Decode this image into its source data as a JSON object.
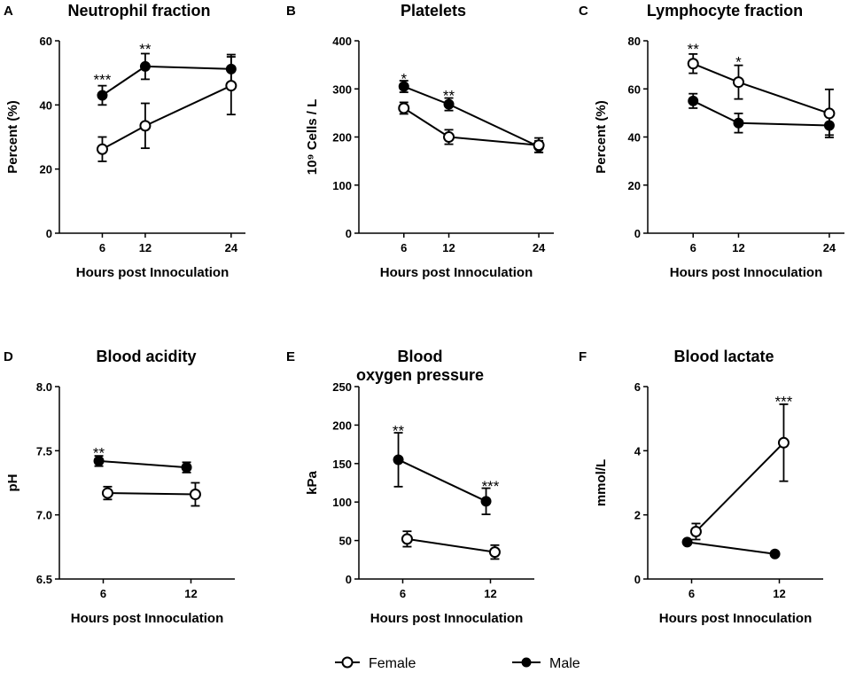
{
  "legend": {
    "female_label": "Female",
    "male_label": "Male"
  },
  "chart_data": [
    {
      "panel": "A",
      "type": "line",
      "title": "Neutrophil fraction",
      "xlabel": "Hours post Innoculation",
      "ylabel": "Percent (%)",
      "ylim": [
        0,
        60
      ],
      "yticks": [
        0,
        20,
        40,
        60
      ],
      "xticks": [
        6,
        12,
        24
      ],
      "xlim": [
        0,
        26
      ],
      "series": [
        {
          "name": "Male",
          "x": [
            6,
            12,
            24
          ],
          "y": [
            43,
            52,
            51.2
          ],
          "err": [
            3,
            4,
            4.5
          ]
        },
        {
          "name": "Female",
          "x": [
            6,
            12,
            24
          ],
          "y": [
            26.2,
            33.5,
            46
          ],
          "err": [
            3.8,
            7,
            9
          ]
        }
      ],
      "annotations": [
        {
          "text": "***",
          "x": 6,
          "y": 48.5
        },
        {
          "text": "**",
          "x": 12,
          "y": 58
        }
      ]
    },
    {
      "panel": "B",
      "type": "line",
      "title": "Platelets",
      "xlabel": "Hours post Innoculation",
      "ylabel": "10⁹ Cells / L",
      "ylim": [
        0,
        400
      ],
      "yticks": [
        0,
        100,
        200,
        300,
        400
      ],
      "xticks": [
        6,
        12,
        24
      ],
      "xlim": [
        0,
        26
      ],
      "series": [
        {
          "name": "Male",
          "x": [
            6,
            12,
            24
          ],
          "y": [
            305,
            268,
            180
          ],
          "err": [
            12,
            13,
            12
          ]
        },
        {
          "name": "Female",
          "x": [
            6,
            12,
            24
          ],
          "y": [
            260,
            200,
            183
          ],
          "err": [
            12,
            15,
            15
          ]
        }
      ],
      "annotations": [
        {
          "text": "*",
          "x": 6,
          "y": 325
        },
        {
          "text": "**",
          "x": 12,
          "y": 290
        }
      ]
    },
    {
      "panel": "C",
      "type": "line",
      "title": "Lymphocyte fraction",
      "xlabel": "Hours post Innoculation",
      "ylabel": "Percent (%)",
      "ylim": [
        0,
        80
      ],
      "yticks": [
        0,
        20,
        40,
        60,
        80
      ],
      "xticks": [
        6,
        12,
        24
      ],
      "xlim": [
        0,
        26
      ],
      "series": [
        {
          "name": "Male",
          "x": [
            6,
            12,
            24
          ],
          "y": [
            55,
            45.8,
            44.8
          ],
          "err": [
            3,
            4,
            4
          ]
        },
        {
          "name": "Female",
          "x": [
            6,
            12,
            24
          ],
          "y": [
            70.5,
            62.8,
            49.8
          ],
          "err": [
            4,
            7,
            10
          ]
        }
      ],
      "annotations": [
        {
          "text": "**",
          "x": 6,
          "y": 77.5
        },
        {
          "text": "*",
          "x": 12,
          "y": 72
        }
      ]
    },
    {
      "panel": "D",
      "type": "line",
      "title": "Blood acidity",
      "xlabel": "Hours post Innoculation",
      "ylabel": "pH",
      "ylim": [
        6.5,
        8.0
      ],
      "yticks": [
        "6.5",
        "7.0",
        "7.5",
        "8.0"
      ],
      "xticks": [
        6,
        12
      ],
      "xlim": [
        3,
        15
      ],
      "series": [
        {
          "name": "Male",
          "x": [
            5.7,
            11.7
          ],
          "y": [
            7.42,
            7.37
          ],
          "err": [
            0.04,
            0.04
          ]
        },
        {
          "name": "Female",
          "x": [
            6.3,
            12.3
          ],
          "y": [
            7.17,
            7.16
          ],
          "err": [
            0.05,
            0.09
          ]
        }
      ],
      "annotations": [
        {
          "text": "**",
          "x": 5.7,
          "y": 7.5
        }
      ]
    },
    {
      "panel": "E",
      "type": "line",
      "title_lines": [
        "Blood",
        "oxygen pressure"
      ],
      "xlabel": "Hours post Innoculation",
      "ylabel": "kPa",
      "ylim": [
        0,
        250
      ],
      "yticks": [
        0,
        50,
        100,
        150,
        200,
        250
      ],
      "xticks": [
        6,
        12
      ],
      "xlim": [
        3,
        15
      ],
      "series": [
        {
          "name": "Male",
          "x": [
            5.7,
            11.7
          ],
          "y": [
            155,
            101
          ],
          "err": [
            35,
            17
          ]
        },
        {
          "name": "Female",
          "x": [
            6.3,
            12.3
          ],
          "y": [
            52,
            35
          ],
          "err": [
            10,
            9
          ]
        }
      ],
      "annotations": [
        {
          "text": "**",
          "x": 5.7,
          "y": 195
        },
        {
          "text": "***",
          "x": 12,
          "y": 123
        }
      ]
    },
    {
      "panel": "F",
      "type": "line",
      "title": "Blood lactate",
      "xlabel": "Hours post Innoculation",
      "ylabel": "mmol/L",
      "ylim": [
        0,
        6
      ],
      "yticks": [
        0,
        2,
        4,
        6
      ],
      "xticks": [
        6,
        12
      ],
      "xlim": [
        3,
        15
      ],
      "series": [
        {
          "name": "Male",
          "x": [
            5.7,
            11.7
          ],
          "y": [
            1.15,
            0.78
          ],
          "err": [
            0.05,
            0.05
          ]
        },
        {
          "name": "Female",
          "x": [
            6.3,
            12.3
          ],
          "y": [
            1.48,
            4.25
          ],
          "err": [
            0.25,
            1.2
          ]
        }
      ],
      "annotations": [
        {
          "text": "***",
          "x": 12.3,
          "y": 5.6
        }
      ]
    }
  ]
}
